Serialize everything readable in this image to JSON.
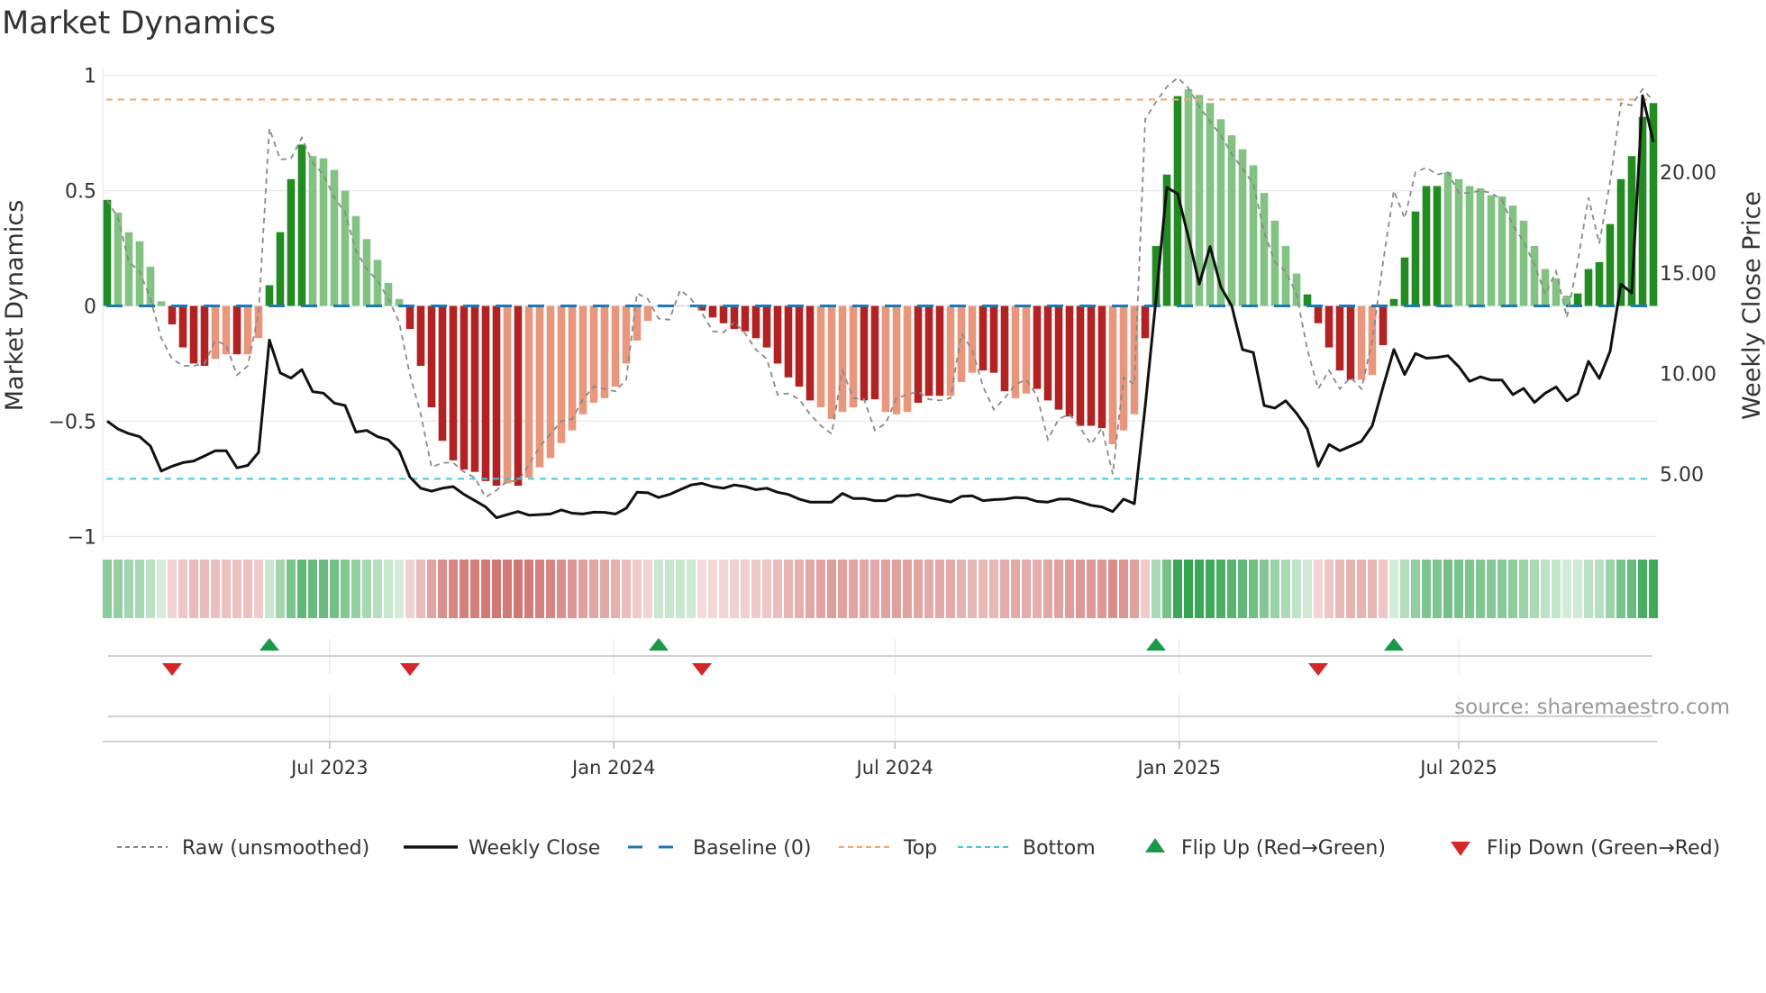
{
  "title": "Market Dynamics",
  "source": "source: sharemaestro.com",
  "colors": {
    "pos_strong": "#228B22",
    "pos_weak": "#82c282",
    "neg_strong": "#b22222",
    "neg_weak": "#e9977c",
    "raw": "#8a8a8a",
    "close": "#111111",
    "baseline": "#1f77b4",
    "top": "#f0a76e",
    "bottom": "#45c6d6",
    "flip_up": "#1a9a48",
    "flip_down": "#d62728",
    "grid": "#e9ecf2"
  },
  "chart_data": {
    "type": "bar",
    "title": "Market Dynamics",
    "ylabel": "Market Dynamics",
    "y2label": "Weekly Close Price",
    "ylim": [
      -1.03,
      1.03
    ],
    "y2lim": [
      1.56,
      25.15
    ],
    "yticks": [
      {
        "v": 1,
        "label": "1"
      },
      {
        "v": 0.5,
        "label": "0.5"
      },
      {
        "v": 0,
        "label": "0"
      },
      {
        "v": -0.5,
        "label": "−0.5"
      },
      {
        "v": -1,
        "label": "−1"
      }
    ],
    "y2ticks": [
      {
        "v": 5,
        "label": "5.00"
      },
      {
        "v": 10,
        "label": "10.00"
      },
      {
        "v": 15,
        "label": "15.00"
      },
      {
        "v": 20,
        "label": "20.00"
      }
    ],
    "start_date": "2023-02-07",
    "step_days": 7,
    "xticks": [
      {
        "date": "2023-07-01",
        "label": "Jul 2023"
      },
      {
        "date": "2024-01-01",
        "label": "Jan 2024"
      },
      {
        "date": "2024-07-01",
        "label": "Jul 2024"
      },
      {
        "date": "2025-01-01",
        "label": "Jan 2025"
      },
      {
        "date": "2025-07-01",
        "label": "Jul 2025"
      }
    ],
    "top_level": 0.895,
    "bottom_level": -0.75,
    "baseline": 0,
    "grid": true,
    "legend_position": "bottom",
    "smoothed": [
      0.46,
      0.405,
      0.32,
      0.28,
      0.17,
      0.02,
      -0.08,
      -0.18,
      -0.25,
      -0.26,
      -0.23,
      -0.21,
      -0.21,
      -0.21,
      -0.14,
      0.09,
      0.32,
      0.55,
      0.7,
      0.65,
      0.64,
      0.59,
      0.5,
      0.39,
      0.29,
      0.2,
      0.1,
      0.03,
      -0.1,
      -0.26,
      -0.44,
      -0.585,
      -0.67,
      -0.71,
      -0.72,
      -0.76,
      -0.78,
      -0.77,
      -0.78,
      -0.745,
      -0.7,
      -0.66,
      -0.595,
      -0.54,
      -0.47,
      -0.42,
      -0.4,
      -0.35,
      -0.25,
      -0.15,
      -0.065,
      0,
      0,
      0,
      0,
      -0.02,
      -0.05,
      -0.075,
      -0.1,
      -0.11,
      -0.14,
      -0.18,
      -0.25,
      -0.31,
      -0.35,
      -0.41,
      -0.44,
      -0.49,
      -0.46,
      -0.44,
      -0.41,
      -0.405,
      -0.46,
      -0.47,
      -0.46,
      -0.42,
      -0.39,
      -0.39,
      -0.39,
      -0.33,
      -0.29,
      -0.28,
      -0.29,
      -0.37,
      -0.4,
      -0.38,
      -0.36,
      -0.41,
      -0.45,
      -0.48,
      -0.52,
      -0.52,
      -0.53,
      -0.6,
      -0.54,
      -0.47,
      -0.14,
      0.26,
      0.57,
      0.91,
      0.94,
      0.915,
      0.88,
      0.81,
      0.74,
      0.68,
      0.61,
      0.49,
      0.37,
      0.26,
      0.14,
      0.05,
      -0.075,
      -0.18,
      -0.28,
      -0.32,
      -0.32,
      -0.3,
      -0.17,
      0.03,
      0.21,
      0.41,
      0.52,
      0.52,
      0.58,
      0.55,
      0.52,
      0.51,
      0.48,
      0.475,
      0.435,
      0.37,
      0.26,
      0.16,
      0.12,
      0.045,
      0.054,
      0.16,
      0.19,
      0.355,
      0.55,
      0.65,
      0.82,
      0.88
    ],
    "shade": "dlllllddddlldllddddllllllllldddddddddldlllllllllllllllddddddddddddllllddllldddllldddlldddddddlllddddllllllllllldddddlldddddd llllllllllldddddddd",
    "raw": [
      0.46,
      0.38,
      0.19,
      0.15,
      0.03,
      -0.14,
      -0.23,
      -0.26,
      -0.26,
      -0.25,
      -0.15,
      -0.17,
      -0.3,
      -0.26,
      -0.03,
      0.77,
      0.635,
      0.64,
      0.73,
      0.62,
      0.57,
      0.47,
      0.405,
      0.24,
      0.16,
      0.11,
      0.03,
      -0.07,
      -0.3,
      -0.47,
      -0.7,
      -0.68,
      -0.68,
      -0.72,
      -0.745,
      -0.83,
      -0.8,
      -0.76,
      -0.76,
      -0.69,
      -0.61,
      -0.555,
      -0.5,
      -0.49,
      -0.405,
      -0.35,
      -0.36,
      -0.37,
      -0.32,
      0.055,
      0.03,
      -0.055,
      -0.06,
      0.07,
      0.03,
      -0.03,
      -0.11,
      -0.115,
      -0.07,
      -0.12,
      -0.19,
      -0.23,
      -0.385,
      -0.38,
      -0.405,
      -0.47,
      -0.52,
      -0.555,
      -0.28,
      -0.4,
      -0.405,
      -0.54,
      -0.51,
      -0.4,
      -0.385,
      -0.37,
      -0.405,
      -0.41,
      -0.4,
      -0.12,
      -0.19,
      -0.35,
      -0.45,
      -0.4,
      -0.34,
      -0.32,
      -0.39,
      -0.58,
      -0.49,
      -0.47,
      -0.53,
      -0.6,
      -0.53,
      -0.73,
      -0.31,
      -0.34,
      0.81,
      0.885,
      0.95,
      0.99,
      0.945,
      0.865,
      0.8,
      0.74,
      0.66,
      0.595,
      0.53,
      0.32,
      0.19,
      0.15,
      0.05,
      -0.19,
      -0.36,
      -0.28,
      -0.36,
      -0.31,
      -0.36,
      -0.15,
      0.19,
      0.5,
      0.38,
      0.58,
      0.6,
      0.57,
      0.58,
      0.49,
      0.49,
      0.5,
      0.49,
      0.46,
      0.35,
      0.28,
      0.18,
      0.05,
      0.15,
      -0.05,
      0.19,
      0.47,
      0.27,
      0.54,
      0.88,
      0.87,
      0.94,
      0.89
    ],
    "close": [
      7.63,
      7.24,
      7.01,
      6.86,
      6.39,
      5.15,
      5.39,
      5.57,
      5.65,
      5.9,
      6.16,
      6.16,
      5.31,
      5.43,
      6.08,
      11.66,
      10.03,
      9.77,
      10.19,
      9.1,
      9.02,
      8.53,
      8.41,
      7.09,
      7.17,
      6.86,
      6.7,
      6.16,
      4.85,
      4.3,
      4.15,
      4.3,
      4.38,
      3.99,
      3.68,
      3.37,
      2.83,
      2.99,
      3.14,
      2.96,
      2.99,
      3.02,
      3.22,
      3.06,
      3.02,
      3.11,
      3.1,
      3.02,
      3.3,
      4.1,
      4.07,
      3.84,
      3.99,
      4.23,
      4.46,
      4.54,
      4.38,
      4.3,
      4.46,
      4.38,
      4.23,
      4.3,
      4.1,
      3.99,
      3.76,
      3.61,
      3.61,
      3.61,
      4.04,
      3.79,
      3.79,
      3.68,
      3.68,
      3.92,
      3.92,
      3.99,
      3.84,
      3.73,
      3.61,
      3.89,
      3.92,
      3.68,
      3.73,
      3.76,
      3.84,
      3.81,
      3.64,
      3.61,
      3.76,
      3.76,
      3.61,
      3.45,
      3.37,
      3.14,
      3.76,
      3.53,
      8.37,
      13.7,
      19.24,
      18.93,
      16.76,
      14.44,
      16.3,
      14.29,
      13.36,
      11.19,
      11.04,
      8.41,
      8.28,
      8.64,
      8.02,
      7.24,
      5.39,
      6.47,
      6.16,
      6.39,
      6.63,
      7.4,
      9.33,
      11.19,
      9.95,
      10.99,
      10.76,
      10.8,
      10.88,
      10.34,
      9.61,
      9.83,
      9.67,
      9.67,
      8.95,
      9.26,
      8.56,
      9.02,
      9.33,
      8.64,
      8.99,
      10.6,
      9.75,
      11.11,
      14.44,
      14.0,
      23.8,
      21.5
    ],
    "heat_overrides": {
      "51": 0.08,
      "52": 0.1,
      "53": 0.1,
      "54": 0.06
    },
    "flip_up": [
      15,
      51,
      97,
      119
    ],
    "flip_down": [
      6,
      28,
      55,
      112
    ],
    "legend": [
      {
        "key": "raw",
        "label": "Raw (unsmoothed)"
      },
      {
        "key": "close",
        "label": "Weekly Close"
      },
      {
        "key": "baseline",
        "label": "Baseline (0)"
      },
      {
        "key": "top",
        "label": "Top"
      },
      {
        "key": "bottom",
        "label": "Bottom"
      },
      {
        "key": "flip_up",
        "label": "Flip Up (Red→Green)"
      },
      {
        "key": "flip_down",
        "label": "Flip Down (Green→Red)"
      }
    ]
  }
}
